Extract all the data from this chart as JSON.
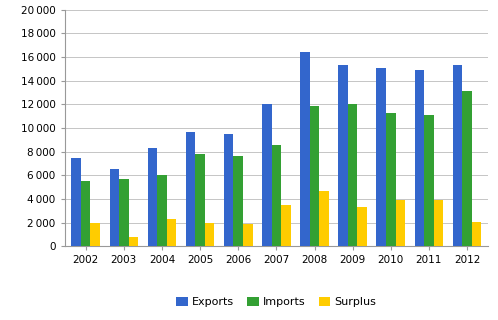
{
  "years": [
    2002,
    2003,
    2004,
    2005,
    2006,
    2007,
    2008,
    2009,
    2010,
    2011,
    2012
  ],
  "exports": [
    7500,
    6500,
    8300,
    9700,
    9500,
    12000,
    16400,
    15350,
    15100,
    14900,
    15300
  ],
  "imports": [
    5500,
    5700,
    6000,
    7800,
    7650,
    8600,
    11900,
    12000,
    11300,
    11100,
    13150
  ],
  "surplus": [
    2000,
    800,
    2300,
    2000,
    1900,
    3500,
    4650,
    3350,
    3900,
    3900,
    2100
  ],
  "bar_colors": [
    "#3366cc",
    "#33a033",
    "#ffcc00"
  ],
  "legend_labels": [
    "Exports",
    "Imports",
    "Surplus"
  ],
  "ylim": [
    0,
    20000
  ],
  "yticks": [
    0,
    2000,
    4000,
    6000,
    8000,
    10000,
    12000,
    14000,
    16000,
    18000,
    20000
  ],
  "background_color": "#ffffff",
  "grid_color": "#bbbbbb",
  "bar_width": 0.25,
  "bar_gap": 0.0,
  "fig_width": 4.98,
  "fig_height": 3.2,
  "dpi": 100
}
